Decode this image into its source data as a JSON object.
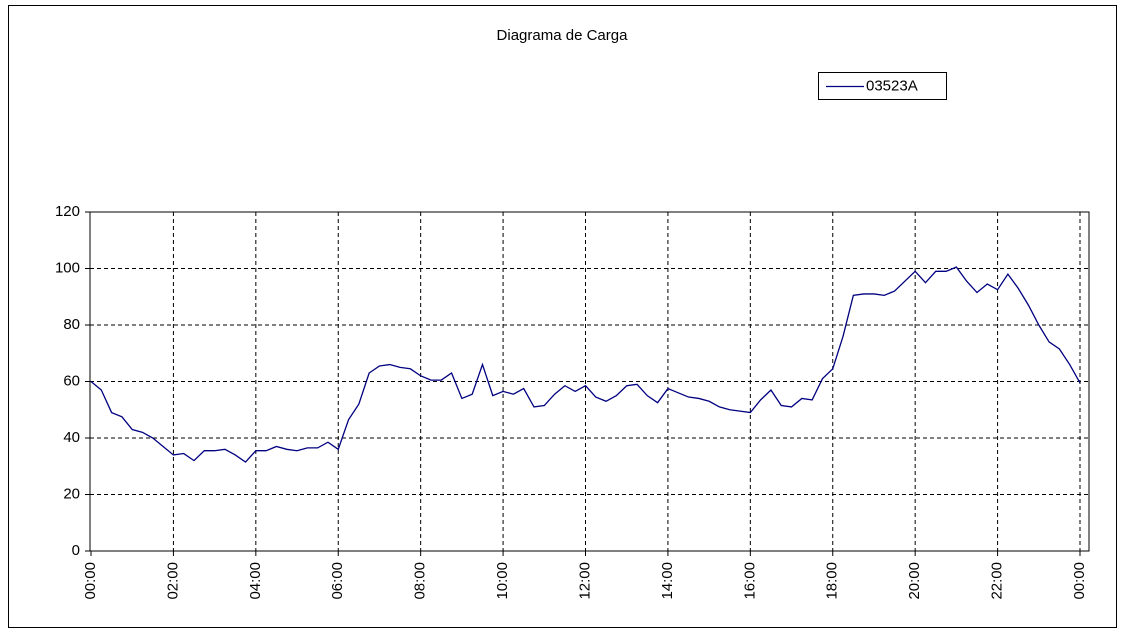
{
  "chart_data": {
    "type": "line",
    "title": "Diagrama de Carga",
    "categories": [
      "00:00",
      null,
      null,
      null,
      null,
      null,
      null,
      null,
      "02:00",
      null,
      null,
      null,
      null,
      null,
      null,
      null,
      "04:00",
      null,
      null,
      null,
      null,
      null,
      null,
      null,
      "06:00",
      null,
      null,
      null,
      null,
      null,
      null,
      null,
      "08:00",
      null,
      null,
      null,
      null,
      null,
      null,
      null,
      "10:00",
      null,
      null,
      null,
      null,
      null,
      null,
      null,
      "12:00",
      null,
      null,
      null,
      null,
      null,
      null,
      null,
      "14:00",
      null,
      null,
      null,
      null,
      null,
      null,
      null,
      "16:00",
      null,
      null,
      null,
      null,
      null,
      null,
      null,
      "18:00",
      null,
      null,
      null,
      null,
      null,
      null,
      null,
      "20:00",
      null,
      null,
      null,
      null,
      null,
      null,
      null,
      "22:00",
      null,
      null,
      null,
      null,
      null,
      null,
      null,
      "00:00"
    ],
    "series": [
      {
        "name": "03523A",
        "color": "#000080",
        "values": [
          60,
          57,
          49,
          47.5,
          43,
          42,
          40,
          37,
          34,
          34.5,
          32,
          35.5,
          35.5,
          36,
          34,
          31.5,
          35.5,
          35.5,
          37,
          36,
          35.5,
          36.5,
          36.5,
          38.5,
          36,
          46.5,
          52,
          63,
          65.5,
          66,
          65,
          64.5,
          62,
          60.5,
          60.5,
          63,
          54,
          55.5,
          66,
          55,
          56.5,
          55.5,
          57.5,
          51,
          51.5,
          55.5,
          58.5,
          56.5,
          58.5,
          54.5,
          53,
          55,
          58.5,
          59,
          55,
          52.5,
          57.5,
          56,
          54.5,
          54,
          53,
          51,
          50,
          49.5,
          49,
          53.5,
          57,
          51.5,
          51,
          54,
          53.5,
          61,
          64.5,
          76,
          90.5,
          91,
          91,
          90.5,
          92,
          95.5,
          99,
          95,
          99,
          99,
          100.5,
          95.5,
          91.5,
          94.5,
          92.5,
          98,
          93,
          87,
          80,
          74,
          71.5,
          66,
          59.5
        ]
      }
    ],
    "ylim": [
      0,
      120
    ],
    "yticks": [
      0,
      20,
      40,
      60,
      80,
      100,
      120
    ],
    "grid": true,
    "legend": "top-right"
  }
}
